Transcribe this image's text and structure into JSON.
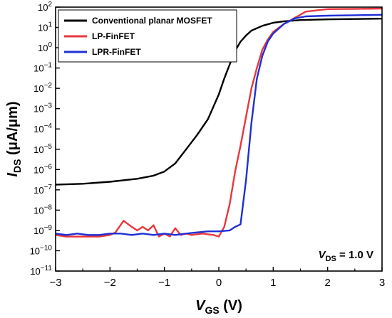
{
  "chart_data": {
    "type": "line",
    "xlabel": {
      "main": "V",
      "sub": "GS",
      "unit": " (V)"
    },
    "ylabel": {
      "main": "I",
      "sub": "DS",
      "unit": " (μA/μm)"
    },
    "xlim": [
      -3,
      3
    ],
    "ylim_log10": [
      -11,
      2
    ],
    "y_scale": "log",
    "x_ticks": [
      -3,
      -2,
      -1,
      0,
      1,
      2,
      3
    ],
    "x_tick_labels": [
      "−3",
      "−2",
      "−1",
      "0",
      "1",
      "2",
      "3"
    ],
    "y_tick_exponents": [
      -11,
      -10,
      -9,
      -8,
      -7,
      -6,
      -5,
      -4,
      -3,
      -2,
      -1,
      0,
      1,
      2
    ],
    "y_tick_base": "10",
    "legend_position": "top-left",
    "annotation": {
      "main": "V",
      "sub": "DS",
      "rest": " = 1.0 V"
    },
    "series": [
      {
        "name": "Conventional planar MOSFET",
        "color": "#000000",
        "x": [
          -3.0,
          -2.5,
          -2.0,
          -1.5,
          -1.2,
          -1.0,
          -0.8,
          -0.6,
          -0.4,
          -0.2,
          0.0,
          0.1,
          0.2,
          0.3,
          0.4,
          0.5,
          0.6,
          0.8,
          1.0,
          1.2,
          1.5,
          2.0,
          2.5,
          3.0
        ],
        "y": [
          1.8e-07,
          2e-07,
          2.5e-07,
          3.5e-07,
          5e-07,
          8e-07,
          2e-06,
          1e-05,
          5e-05,
          0.0003,
          0.005,
          0.03,
          0.15,
          0.7,
          2,
          4,
          7,
          12,
          17,
          20,
          23,
          25,
          26,
          27
        ]
      },
      {
        "name": "LP-FinFET",
        "color": "#e8373d",
        "x": [
          -3.0,
          -2.8,
          -2.5,
          -2.2,
          -2.0,
          -1.9,
          -1.75,
          -1.6,
          -1.5,
          -1.4,
          -1.3,
          -1.2,
          -1.1,
          -1.0,
          -0.9,
          -0.8,
          -0.7,
          -0.6,
          -0.5,
          -0.3,
          -0.1,
          0.0,
          0.1,
          0.2,
          0.3,
          0.4,
          0.5,
          0.6,
          0.7,
          0.8,
          0.9,
          1.0,
          1.2,
          1.4,
          1.6,
          2.0,
          2.5,
          3.0
        ],
        "y": [
          6e-10,
          5e-10,
          5e-10,
          5e-10,
          6e-10,
          8e-10,
          3e-09,
          1.5e-09,
          1e-09,
          1.5e-09,
          1e-09,
          1.8e-09,
          5e-10,
          7e-10,
          5e-10,
          1.3e-09,
          6e-10,
          7e-10,
          6e-10,
          7e-10,
          6e-10,
          5e-10,
          1.5e-09,
          2e-08,
          8e-07,
          1.5e-05,
          0.0004,
          0.01,
          0.1,
          0.8,
          2.5,
          6,
          15,
          30,
          60,
          80,
          82,
          85
        ]
      },
      {
        "name": "LPR-FinFET",
        "color": "#1e2fd6",
        "x": [
          -3.0,
          -2.8,
          -2.6,
          -2.4,
          -2.2,
          -2.0,
          -1.8,
          -1.6,
          -1.4,
          -1.2,
          -1.0,
          -0.8,
          -0.6,
          -0.4,
          -0.2,
          0.0,
          0.2,
          0.3,
          0.4,
          0.5,
          0.6,
          0.7,
          0.8,
          0.9,
          1.0,
          1.2,
          1.4,
          1.6,
          2.0,
          2.5,
          3.0
        ],
        "y": [
          7e-10,
          6e-10,
          7e-10,
          6e-10,
          6e-10,
          7e-10,
          7e-10,
          6e-10,
          7e-10,
          6e-10,
          7e-10,
          6e-10,
          7e-10,
          8e-10,
          9e-10,
          9e-10,
          1e-09,
          1.5e-09,
          2e-09,
          3e-07,
          0.0002,
          0.03,
          0.4,
          2,
          5,
          15,
          28,
          35,
          38,
          40,
          42
        ]
      }
    ]
  }
}
